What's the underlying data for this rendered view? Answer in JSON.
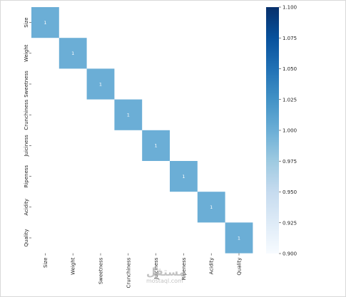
{
  "chart_data": {
    "type": "heatmap",
    "title": "",
    "xlabel": "",
    "ylabel": "",
    "rows": [
      "Size",
      "Weight",
      "Sweetness",
      "Crunchiness",
      "Juiciness",
      "Ripeness",
      "Acidity",
      "Quality"
    ],
    "columns": [
      "Size",
      "Weight",
      "Sweetness",
      "Crunchiness",
      "Juiciness",
      "Ripeness",
      "Acidity",
      "Quality"
    ],
    "values": [
      [
        1,
        null,
        null,
        null,
        null,
        null,
        null,
        null
      ],
      [
        null,
        1,
        null,
        null,
        null,
        null,
        null,
        null
      ],
      [
        null,
        null,
        1,
        null,
        null,
        null,
        null,
        null
      ],
      [
        null,
        null,
        null,
        1,
        null,
        null,
        null,
        null
      ],
      [
        null,
        null,
        null,
        null,
        1,
        null,
        null,
        null
      ],
      [
        null,
        null,
        null,
        null,
        null,
        1,
        null,
        null
      ],
      [
        null,
        null,
        null,
        null,
        null,
        null,
        1,
        null
      ],
      [
        null,
        null,
        null,
        null,
        null,
        null,
        null,
        1
      ]
    ],
    "colorbar": {
      "colormap": "Blues",
      "range": [
        0.9,
        1.1
      ],
      "ticks": [
        "0.900",
        "0.925",
        "0.950",
        "0.975",
        "1.000",
        "1.025",
        "1.050",
        "1.075",
        "1.100"
      ],
      "low_color": "#f7fbff",
      "high_color": "#08306b"
    },
    "cell_color": "#6baed6",
    "grid": false
  },
  "watermark": {
    "sign": "مستقل",
    "text": "mostaql.com"
  }
}
